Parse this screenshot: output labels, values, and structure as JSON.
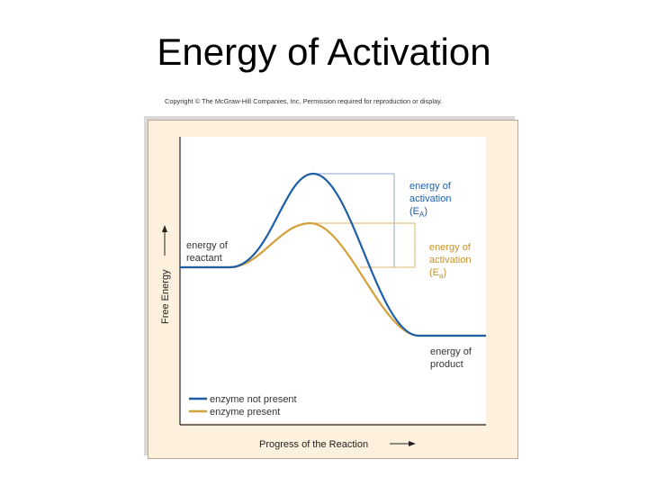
{
  "slide": {
    "title": "Energy of Activation",
    "copyright": "Copyright © The McGraw-Hill Companies, Inc. Permission required for reproduction or display."
  },
  "diagram": {
    "colors": {
      "panel": "#fdf0dc",
      "plot_area": "#ffffff",
      "no_enzyme": "#1f5fa8",
      "enzyme": "#d4a039",
      "axis": "#222222"
    },
    "axes": {
      "y_label": "Free Energy",
      "x_label": "Progress of the Reaction"
    },
    "labels": {
      "reactant": [
        "energy of",
        "reactant"
      ],
      "product": [
        "energy of",
        "product"
      ],
      "ea_no_enzyme": [
        "energy of",
        "activation",
        "(E",
        "A",
        ")"
      ],
      "ea_enzyme": [
        "energy of",
        "activation",
        "(E",
        "a",
        ")"
      ]
    },
    "legend": [
      {
        "name": "enzyme not present",
        "color": "#1f5fa8"
      },
      {
        "name": "enzyme present",
        "color": "#d4a039"
      }
    ]
  }
}
